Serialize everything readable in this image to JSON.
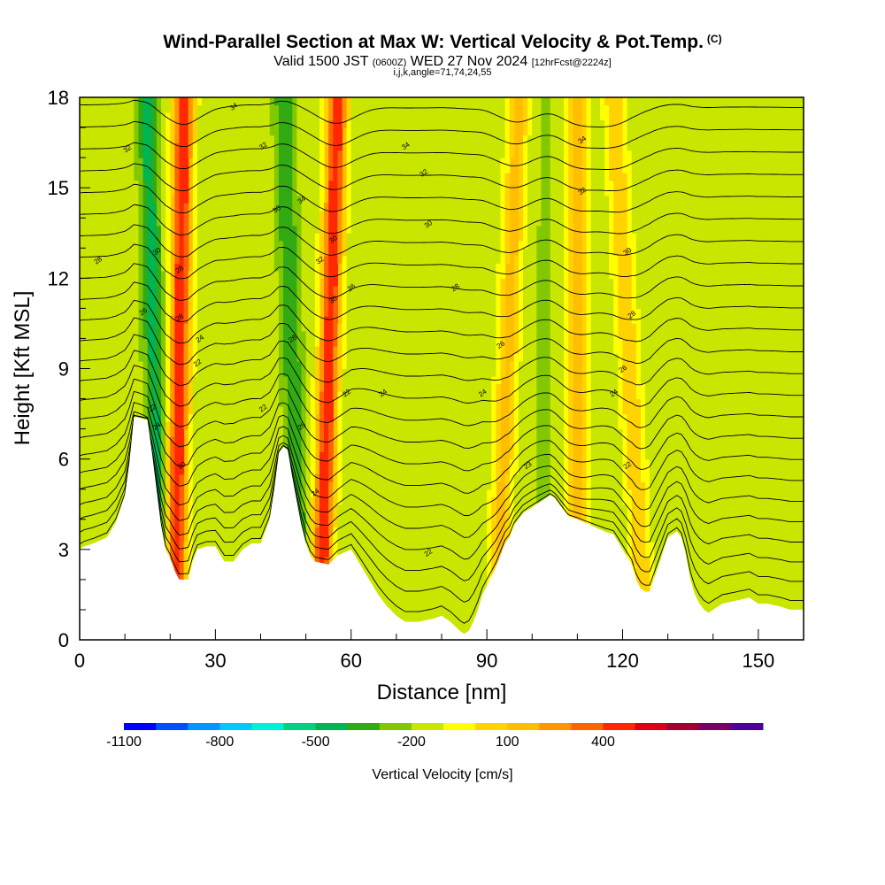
{
  "title": "Wind-Parallel Section at Max W: Vertical Velocity & Pot.Temp.",
  "copyright_mark": "(C)",
  "subtitle_main": "Valid 1500 JST",
  "subtitle_utc": "(0600Z)",
  "subtitle_date": "WED 27 Nov 2024",
  "subtitle_fcst": "[12hrFcst@2224z]",
  "subsubtitle": "i,j,k,angle=71,74,24,55",
  "colorbar_title": "Vertical Velocity [cm/s]",
  "chart_data": {
    "type": "heatmap",
    "xlabel": "Distance [nm]",
    "ylabel": "Height [Kft MSL]",
    "xlim": [
      0,
      160
    ],
    "ylim": [
      0,
      18
    ],
    "x_ticks": [
      0,
      30,
      60,
      90,
      120,
      150
    ],
    "y_ticks": [
      0,
      3,
      6,
      9,
      12,
      15,
      18
    ],
    "grid": false,
    "terrain_profile": {
      "x": [
        0,
        1,
        3,
        6,
        8,
        10,
        11,
        12,
        15,
        16,
        17,
        18,
        19,
        20,
        21,
        22,
        24,
        25,
        26,
        28,
        30,
        32,
        34,
        36,
        38,
        40,
        42,
        43,
        44,
        45,
        46,
        47,
        48,
        49,
        50,
        51,
        52,
        55,
        57,
        60,
        62,
        64,
        66,
        68,
        70,
        72,
        75,
        78,
        80,
        82,
        84,
        85,
        86,
        87,
        88,
        89,
        90,
        92,
        94,
        95,
        96,
        97,
        98,
        99,
        100,
        102,
        104,
        105,
        106,
        107,
        108,
        110,
        113,
        116,
        118,
        120,
        122,
        123,
        124,
        125,
        126,
        128,
        130,
        132,
        133,
        134,
        135,
        136,
        137,
        138,
        139,
        140,
        142,
        145,
        148,
        150,
        152,
        155,
        157,
        160
      ],
      "height_kft": [
        3.0,
        3.1,
        3.2,
        3.4,
        3.9,
        4.8,
        5.9,
        7.4,
        7.3,
        6.2,
        5.0,
        3.8,
        3.0,
        2.7,
        2.3,
        2.0,
        2.0,
        2.6,
        3.0,
        3.1,
        3.1,
        2.6,
        2.6,
        3.0,
        3.2,
        3.2,
        4.0,
        5.0,
        6.2,
        6.4,
        6.3,
        5.4,
        4.6,
        3.8,
        3.2,
        2.8,
        2.6,
        2.5,
        2.8,
        3.0,
        2.5,
        2.0,
        1.5,
        1.1,
        0.8,
        0.6,
        0.6,
        0.7,
        0.8,
        0.6,
        0.3,
        0.2,
        0.3,
        0.6,
        1.0,
        1.5,
        1.8,
        2.4,
        3.2,
        3.4,
        3.8,
        4.0,
        4.2,
        4.3,
        4.4,
        4.6,
        4.8,
        4.7,
        4.5,
        4.3,
        4.1,
        4.0,
        3.8,
        3.6,
        3.5,
        3.0,
        2.5,
        2.0,
        1.7,
        1.6,
        1.6,
        2.5,
        3.4,
        3.6,
        3.4,
        2.8,
        2.0,
        1.5,
        1.2,
        1.0,
        0.9,
        1.0,
        1.2,
        1.3,
        1.4,
        1.2,
        1.2,
        1.1,
        1.0,
        1.0
      ]
    },
    "updraft_bands": [
      {
        "x_top_nm": 23,
        "x_bottom_nm": 21,
        "peak_cm_s": 500
      },
      {
        "x_top_nm": 57,
        "x_bottom_nm": 53,
        "peak_cm_s": 500
      },
      {
        "x_top_nm": 97,
        "x_bottom_nm": 92,
        "peak_cm_s": 150
      },
      {
        "x_top_nm": 110,
        "x_bottom_nm": 110,
        "peak_cm_s": 200
      },
      {
        "x_top_nm": 118,
        "x_bottom_nm": 125,
        "peak_cm_s": 100
      }
    ],
    "downdraft_bands": [
      {
        "x_top_nm": 15,
        "x_bottom_nm": 18,
        "min_cm_s": -450
      },
      {
        "x_top_nm": 45,
        "x_bottom_nm": 49,
        "min_cm_s": -400
      },
      {
        "x_top_nm": 72,
        "x_bottom_nm": 75,
        "min_cm_s": -200
      },
      {
        "x_top_nm": 85,
        "x_bottom_nm": 87,
        "min_cm_s": -200
      },
      {
        "x_top_nm": 103,
        "x_bottom_nm": 102,
        "min_cm_s": -220
      }
    ],
    "colorbar": {
      "colors": [
        "#0000ff",
        "#0050ff",
        "#0096ff",
        "#00c8ff",
        "#00f0dc",
        "#00d282",
        "#00b450",
        "#32aa14",
        "#82c800",
        "#c8e600",
        "#ffff00",
        "#ffd200",
        "#ffbe00",
        "#ff9600",
        "#ff6400",
        "#ff2800",
        "#dc0014",
        "#a00032",
        "#780064",
        "#500096"
      ],
      "tick_labels": [
        "-1100",
        "-800",
        "-500",
        "-200",
        "100",
        "400"
      ],
      "tick_positions": [
        0,
        3,
        6,
        9,
        12,
        15
      ]
    },
    "theta_contours": {
      "levels": [
        22,
        24,
        26,
        28,
        30,
        32,
        34
      ],
      "line_count": 24,
      "labels": [
        {
          "x_nm": 10.5,
          "y_kft": 16.3,
          "text": "32"
        },
        {
          "x_nm": 4,
          "y_kft": 12.6,
          "text": "28"
        },
        {
          "x_nm": 17,
          "y_kft": 12.9,
          "text": "30"
        },
        {
          "x_nm": 14,
          "y_kft": 10.9,
          "text": "26"
        },
        {
          "x_nm": 16,
          "y_kft": 7.7,
          "text": "22"
        },
        {
          "x_nm": 17,
          "y_kft": 7.1,
          "text": "24"
        },
        {
          "x_nm": 22,
          "y_kft": 12.3,
          "text": "28"
        },
        {
          "x_nm": 22,
          "y_kft": 10.7,
          "text": "26"
        },
        {
          "x_nm": 26.5,
          "y_kft": 10.0,
          "text": "24"
        },
        {
          "x_nm": 26,
          "y_kft": 9.2,
          "text": "22"
        },
        {
          "x_nm": 22.5,
          "y_kft": 5.8,
          "text": "30"
        },
        {
          "x_nm": 34,
          "y_kft": 17.7,
          "text": "34"
        },
        {
          "x_nm": 40.5,
          "y_kft": 16.4,
          "text": "32"
        },
        {
          "x_nm": 43.5,
          "y_kft": 14.3,
          "text": "30"
        },
        {
          "x_nm": 49,
          "y_kft": 14.6,
          "text": "34"
        },
        {
          "x_nm": 47,
          "y_kft": 10.0,
          "text": "28"
        },
        {
          "x_nm": 40.5,
          "y_kft": 7.7,
          "text": "22"
        },
        {
          "x_nm": 49,
          "y_kft": 7.1,
          "text": "26"
        },
        {
          "x_nm": 52,
          "y_kft": 4.9,
          "text": "24"
        },
        {
          "x_nm": 53,
          "y_kft": 12.6,
          "text": "32"
        },
        {
          "x_nm": 56,
          "y_kft": 13.3,
          "text": "30"
        },
        {
          "x_nm": 56,
          "y_kft": 11.3,
          "text": "30"
        },
        {
          "x_nm": 60,
          "y_kft": 11.7,
          "text": "26"
        },
        {
          "x_nm": 59,
          "y_kft": 8.2,
          "text": "22"
        },
        {
          "x_nm": 67,
          "y_kft": 8.2,
          "text": "24"
        },
        {
          "x_nm": 72,
          "y_kft": 16.4,
          "text": "34"
        },
        {
          "x_nm": 76,
          "y_kft": 15.5,
          "text": "32"
        },
        {
          "x_nm": 77,
          "y_kft": 13.8,
          "text": "30"
        },
        {
          "x_nm": 83,
          "y_kft": 11.7,
          "text": "28"
        },
        {
          "x_nm": 93,
          "y_kft": 9.8,
          "text": "26"
        },
        {
          "x_nm": 89,
          "y_kft": 8.2,
          "text": "24"
        },
        {
          "x_nm": 99,
          "y_kft": 5.8,
          "text": "23"
        },
        {
          "x_nm": 77,
          "y_kft": 2.9,
          "text": "22"
        },
        {
          "x_nm": 111,
          "y_kft": 16.6,
          "text": "34"
        },
        {
          "x_nm": 111,
          "y_kft": 14.9,
          "text": "32"
        },
        {
          "x_nm": 121,
          "y_kft": 12.9,
          "text": "30"
        },
        {
          "x_nm": 122,
          "y_kft": 10.8,
          "text": "28"
        },
        {
          "x_nm": 120,
          "y_kft": 9.0,
          "text": "26"
        },
        {
          "x_nm": 118,
          "y_kft": 8.2,
          "text": "24"
        },
        {
          "x_nm": 121,
          "y_kft": 5.8,
          "text": "22"
        }
      ]
    }
  }
}
